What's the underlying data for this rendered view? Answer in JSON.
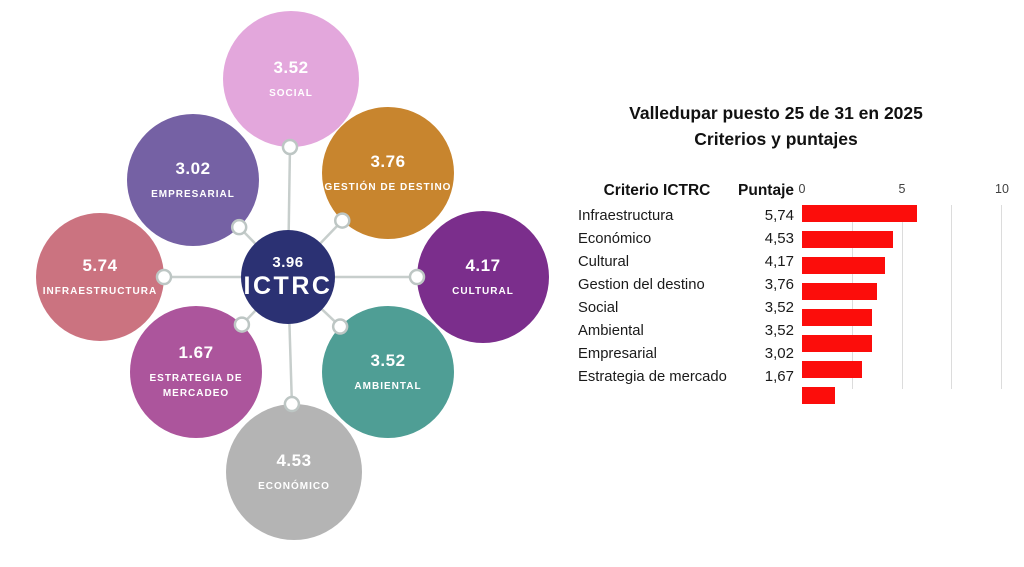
{
  "diagram": {
    "center": {
      "value": "3.96",
      "label": "ICTRC",
      "color": "#2B3173"
    },
    "nodes": [
      {
        "id": "social",
        "value": "3.52",
        "label": "SOCIAL",
        "color": "#E3A7DC"
      },
      {
        "id": "gestion-de-destino",
        "value": "3.76",
        "label": "GESTIÓN DE DESTINO",
        "color": "#C8852E"
      },
      {
        "id": "cultural",
        "value": "4.17",
        "label": "CULTURAL",
        "color": "#7B2E8C"
      },
      {
        "id": "ambiental",
        "value": "3.52",
        "label": "AMBIENTAL",
        "color": "#4F9E95"
      },
      {
        "id": "economico",
        "value": "4.53",
        "label": "ECONÓMICO",
        "color": "#B4B4B4"
      },
      {
        "id": "estrategia-de-mercadeo",
        "value": "1.67",
        "label": "ESTRATEGIA DE MERCADEO",
        "color": "#AC559C"
      },
      {
        "id": "infraestructura",
        "value": "5.74",
        "label": "INFRAESTRUCTURA",
        "color": "#CB7380"
      },
      {
        "id": "empresarial",
        "value": "3.02",
        "label": "EMPRESARIAL",
        "color": "#7561A4"
      }
    ],
    "connector_color": "#C7CECC",
    "node_dot_stroke": "#BDC6C4"
  },
  "panel": {
    "title_line1": "Valledupar puesto 25 de 31 en 2025",
    "title_line2": "Criterios y puntajes",
    "table": {
      "col_criterio": "Criterio ICTRC",
      "col_puntaje": "Puntaje"
    }
  },
  "chart_data": {
    "type": "bar",
    "orientation": "horizontal",
    "title": "Valledupar puesto 25 de 31 en 2025",
    "subtitle": "Criterios y puntajes",
    "categories": [
      "Infraestructura",
      "Económico",
      "Cultural",
      "Gestion del destino",
      "Social",
      "Ambiental",
      "Empresarial",
      "Estrategia de mercado"
    ],
    "values": [
      5.74,
      4.53,
      4.17,
      3.76,
      3.52,
      3.52,
      3.02,
      1.67
    ],
    "value_labels": [
      "5,74",
      "4,53",
      "4,17",
      "3,76",
      "3,52",
      "3,52",
      "3,02",
      "1,67"
    ],
    "center_total": {
      "label": "ICTRC",
      "value": 3.96
    },
    "xlim": [
      0,
      10
    ],
    "xticks": [
      0,
      5,
      10
    ],
    "gridlines_at": [
      2.5,
      5,
      7.5,
      10
    ],
    "bar_color": "#FC0D0B",
    "grid_color": "#DCDCDC",
    "legend": "none"
  }
}
